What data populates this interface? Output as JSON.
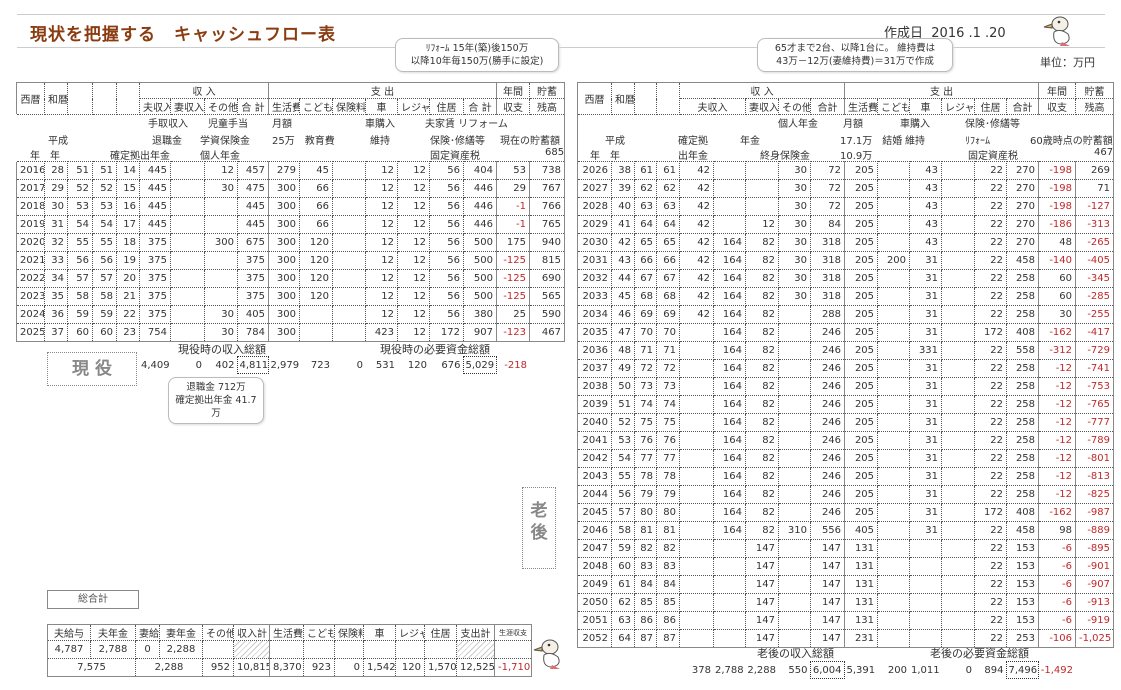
{
  "header": {
    "title": "現状を把握する　キャッシュフロー表",
    "date_label": "作成日",
    "date": "2016 .1 .20",
    "unit": "単位：万円"
  },
  "callouts": {
    "reform": [
      "ﾘﾌｫｰﾑ 15年(築)後150万",
      "以降10年毎150万(勝手に設定)"
    ],
    "car": [
      "65才まで2台、以降1台に。 維持費は",
      "43万－12万(妻維持費)＝31万で作成"
    ],
    "retire": [
      "退職金 712万",
      "確定拠出年金 41.7万"
    ]
  },
  "tags": {
    "active": "現 役",
    "retired": "老 後",
    "grand_total": "総合計"
  },
  "colors": {
    "negative": "#c0282a",
    "title": "#8a3c10"
  },
  "left": {
    "head1": [
      "西暦",
      "和暦",
      "",
      "",
      "",
      "収 入",
      "支 出",
      "年間",
      "貯蓄"
    ],
    "head2": [
      "夫収入",
      "妻収入",
      "その他",
      "合 計",
      "生活費",
      "こども",
      "保険料",
      "車",
      "レジャー",
      "住居",
      "合 計",
      "収支",
      "残高"
    ],
    "labels": [
      "手取収入",
      "児童手当",
      "月額",
      "車購入",
      "夫家賃 リフォーム",
      "平成",
      "退職金",
      "学資保険金",
      "25万　教育費",
      "維持",
      "保険･修繕等",
      "現在の貯蓄額",
      "年　年",
      "確定拠出年金",
      "個人年金",
      "固定資産税",
      "685"
    ],
    "rows": [
      [
        "2016",
        "28",
        "51",
        "51",
        "14",
        "445",
        "",
        "12",
        "457",
        "279",
        "45",
        "",
        "12",
        "12",
        "56",
        "404",
        "53",
        "738"
      ],
      [
        "2017",
        "29",
        "52",
        "52",
        "15",
        "445",
        "",
        "30",
        "475",
        "300",
        "66",
        "",
        "12",
        "12",
        "56",
        "446",
        "29",
        "767"
      ],
      [
        "2018",
        "30",
        "53",
        "53",
        "16",
        "445",
        "",
        "",
        "445",
        "300",
        "66",
        "",
        "12",
        "12",
        "56",
        "446",
        "-1",
        "766"
      ],
      [
        "2019",
        "31",
        "54",
        "54",
        "17",
        "445",
        "",
        "",
        "445",
        "300",
        "66",
        "",
        "12",
        "12",
        "56",
        "446",
        "-1",
        "765"
      ],
      [
        "2020",
        "32",
        "55",
        "55",
        "18",
        "375",
        "",
        "300",
        "675",
        "300",
        "120",
        "",
        "12",
        "12",
        "56",
        "500",
        "175",
        "940"
      ],
      [
        "2021",
        "33",
        "56",
        "56",
        "19",
        "375",
        "",
        "",
        "375",
        "300",
        "120",
        "",
        "12",
        "12",
        "56",
        "500",
        "-125",
        "815"
      ],
      [
        "2022",
        "34",
        "57",
        "57",
        "20",
        "375",
        "",
        "",
        "375",
        "300",
        "120",
        "",
        "12",
        "12",
        "56",
        "500",
        "-125",
        "690"
      ],
      [
        "2023",
        "35",
        "58",
        "58",
        "21",
        "375",
        "",
        "",
        "375",
        "300",
        "120",
        "",
        "12",
        "12",
        "56",
        "500",
        "-125",
        "565"
      ],
      [
        "2024",
        "36",
        "59",
        "59",
        "22",
        "375",
        "",
        "30",
        "405",
        "300",
        "",
        "",
        "12",
        "12",
        "56",
        "380",
        "25",
        "590"
      ],
      [
        "2025",
        "37",
        "60",
        "60",
        "23",
        "754",
        "",
        "30",
        "784",
        "300",
        "",
        "",
        "423",
        "12",
        "172",
        "907",
        "-123",
        "467"
      ]
    ],
    "summary": {
      "income_label": "現役時の収入総額",
      "expense_label": "現役時の必要資金総額",
      "values": [
        "4,409",
        "0",
        "402",
        "4,811",
        "2,979",
        "723",
        "0",
        "531",
        "120",
        "676",
        "5,029",
        "-218"
      ]
    }
  },
  "right": {
    "head1": [
      "西暦",
      "和暦",
      "",
      "",
      "収 入",
      "支 出",
      "年間",
      "貯蓄"
    ],
    "head2": [
      "夫収入",
      "妻収入",
      "その他",
      "合計",
      "生活費",
      "こども",
      "車",
      "レジャー",
      "住居",
      "合計",
      "収支",
      "残高"
    ],
    "labels": [
      "個人年金",
      "月額",
      "車購入",
      "保険･修繕等",
      "平成",
      "確定拠",
      "年金",
      "17.1万　結婚",
      "維持",
      "ﾘﾌｫｰﾑ",
      "60歳時点の貯蓄額",
      "年　年",
      "出年金",
      "終身保険金",
      "10.9万",
      "固定資産税",
      "467"
    ],
    "rows": [
      [
        "2026",
        "38",
        "61",
        "61",
        "42",
        "",
        "",
        "30",
        "72",
        "205",
        "",
        "43",
        "",
        "22",
        "270",
        "-198",
        "269"
      ],
      [
        "2027",
        "39",
        "62",
        "62",
        "42",
        "",
        "",
        "30",
        "72",
        "205",
        "",
        "43",
        "",
        "22",
        "270",
        "-198",
        "71"
      ],
      [
        "2028",
        "40",
        "63",
        "63",
        "42",
        "",
        "",
        "30",
        "72",
        "205",
        "",
        "43",
        "",
        "22",
        "270",
        "-198",
        "-127"
      ],
      [
        "2029",
        "41",
        "64",
        "64",
        "42",
        "",
        "12",
        "30",
        "84",
        "205",
        "",
        "43",
        "",
        "22",
        "270",
        "-186",
        "-313"
      ],
      [
        "2030",
        "42",
        "65",
        "65",
        "42",
        "164",
        "82",
        "30",
        "318",
        "205",
        "",
        "43",
        "",
        "22",
        "270",
        "48",
        "-265"
      ],
      [
        "2031",
        "43",
        "66",
        "66",
        "42",
        "164",
        "82",
        "30",
        "318",
        "205",
        "200",
        "31",
        "",
        "22",
        "458",
        "-140",
        "-405"
      ],
      [
        "2032",
        "44",
        "67",
        "67",
        "42",
        "164",
        "82",
        "30",
        "318",
        "205",
        "",
        "31",
        "",
        "22",
        "258",
        "60",
        "-345"
      ],
      [
        "2033",
        "45",
        "68",
        "68",
        "42",
        "164",
        "82",
        "30",
        "318",
        "205",
        "",
        "31",
        "",
        "22",
        "258",
        "60",
        "-285"
      ],
      [
        "2034",
        "46",
        "69",
        "69",
        "42",
        "164",
        "82",
        "",
        "288",
        "205",
        "",
        "31",
        "",
        "22",
        "258",
        "30",
        "-255"
      ],
      [
        "2035",
        "47",
        "70",
        "70",
        "",
        "164",
        "82",
        "",
        "246",
        "205",
        "",
        "31",
        "",
        "172",
        "408",
        "-162",
        "-417"
      ],
      [
        "2036",
        "48",
        "71",
        "71",
        "",
        "164",
        "82",
        "",
        "246",
        "205",
        "",
        "331",
        "",
        "22",
        "558",
        "-312",
        "-729"
      ],
      [
        "2037",
        "49",
        "72",
        "72",
        "",
        "164",
        "82",
        "",
        "246",
        "205",
        "",
        "31",
        "",
        "22",
        "258",
        "-12",
        "-741"
      ],
      [
        "2038",
        "50",
        "73",
        "73",
        "",
        "164",
        "82",
        "",
        "246",
        "205",
        "",
        "31",
        "",
        "22",
        "258",
        "-12",
        "-753"
      ],
      [
        "2039",
        "51",
        "74",
        "74",
        "",
        "164",
        "82",
        "",
        "246",
        "205",
        "",
        "31",
        "",
        "22",
        "258",
        "-12",
        "-765"
      ],
      [
        "2040",
        "52",
        "75",
        "75",
        "",
        "164",
        "82",
        "",
        "246",
        "205",
        "",
        "31",
        "",
        "22",
        "258",
        "-12",
        "-777"
      ],
      [
        "2041",
        "53",
        "76",
        "76",
        "",
        "164",
        "82",
        "",
        "246",
        "205",
        "",
        "31",
        "",
        "22",
        "258",
        "-12",
        "-789"
      ],
      [
        "2042",
        "54",
        "77",
        "77",
        "",
        "164",
        "82",
        "",
        "246",
        "205",
        "",
        "31",
        "",
        "22",
        "258",
        "-12",
        "-801"
      ],
      [
        "2043",
        "55",
        "78",
        "78",
        "",
        "164",
        "82",
        "",
        "246",
        "205",
        "",
        "31",
        "",
        "22",
        "258",
        "-12",
        "-813"
      ],
      [
        "2044",
        "56",
        "79",
        "79",
        "",
        "164",
        "82",
        "",
        "246",
        "205",
        "",
        "31",
        "",
        "22",
        "258",
        "-12",
        "-825"
      ],
      [
        "2045",
        "57",
        "80",
        "80",
        "",
        "164",
        "82",
        "",
        "246",
        "205",
        "",
        "31",
        "",
        "172",
        "408",
        "-162",
        "-987"
      ],
      [
        "2046",
        "58",
        "81",
        "81",
        "",
        "164",
        "82",
        "310",
        "556",
        "405",
        "",
        "31",
        "",
        "22",
        "458",
        "98",
        "-889"
      ],
      [
        "2047",
        "59",
        "82",
        "82",
        "",
        "",
        "147",
        "",
        "147",
        "131",
        "",
        "",
        "",
        "22",
        "153",
        "-6",
        "-895"
      ],
      [
        "2048",
        "60",
        "83",
        "83",
        "",
        "",
        "147",
        "",
        "147",
        "131",
        "",
        "",
        "",
        "22",
        "153",
        "-6",
        "-901"
      ],
      [
        "2049",
        "61",
        "84",
        "84",
        "",
        "",
        "147",
        "",
        "147",
        "131",
        "",
        "",
        "",
        "22",
        "153",
        "-6",
        "-907"
      ],
      [
        "2050",
        "62",
        "85",
        "85",
        "",
        "",
        "147",
        "",
        "147",
        "131",
        "",
        "",
        "",
        "22",
        "153",
        "-6",
        "-913"
      ],
      [
        "2051",
        "63",
        "86",
        "86",
        "",
        "",
        "147",
        "",
        "147",
        "131",
        "",
        "",
        "",
        "22",
        "153",
        "-6",
        "-919"
      ],
      [
        "2052",
        "64",
        "87",
        "87",
        "",
        "",
        "147",
        "",
        "147",
        "231",
        "",
        "",
        "",
        "22",
        "253",
        "-106",
        "-1,025"
      ]
    ],
    "summary": {
      "income_label": "老後の収入総額",
      "expense_label": "老後の必要資金総額",
      "values": [
        "378",
        "2,788",
        "2,288",
        "550",
        "6,004",
        "5,391",
        "200",
        "1,011",
        "0",
        "894",
        "7,496",
        "-1,492"
      ]
    }
  },
  "totals": {
    "headers": [
      "夫給与",
      "夫年金",
      "妻給与",
      "妻年金",
      "その他",
      "収入計",
      "生活費",
      "こども",
      "保険料",
      "車",
      "レジャー",
      "住居",
      "支出計",
      "生涯収支"
    ],
    "row1": [
      "4,787",
      "2,788",
      "0",
      "2,288"
    ],
    "row2": [
      "7,575",
      "2,288",
      "952",
      "10,815",
      "8,370",
      "923",
      "0",
      "1,542",
      "120",
      "1,570",
      "12,525",
      "-1,710"
    ]
  }
}
